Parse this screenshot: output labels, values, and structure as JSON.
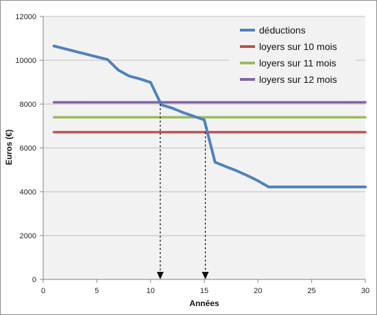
{
  "colors": {
    "background": "#ffffff",
    "plot_area": "#f2f2f2",
    "grid": "#bfbfbf",
    "frame": "#8a8a8a"
  },
  "chart_data": {
    "type": "line",
    "title": "",
    "xlabel": "Années",
    "ylabel": "Euros (€)",
    "xlim": [
      0,
      30
    ],
    "ylim": [
      0,
      12000
    ],
    "x_ticks": [
      0,
      5,
      10,
      15,
      20,
      25,
      30
    ],
    "y_ticks": [
      0,
      2000,
      4000,
      6000,
      8000,
      10000,
      12000
    ],
    "grid": "horizontal",
    "legend_position": "top-right",
    "series": [
      {
        "name": "déductions",
        "color": "#4f81bd",
        "points": [
          [
            1,
            10650
          ],
          [
            6,
            10030
          ],
          [
            7,
            9550
          ],
          [
            8,
            9280
          ],
          [
            9,
            9150
          ],
          [
            10,
            8990
          ],
          [
            11,
            7970
          ],
          [
            12,
            7820
          ],
          [
            13,
            7620
          ],
          [
            14,
            7450
          ],
          [
            15,
            7280
          ],
          [
            16,
            5350
          ],
          [
            17,
            5150
          ],
          [
            18,
            4960
          ],
          [
            19,
            4740
          ],
          [
            20,
            4500
          ],
          [
            21,
            4220
          ],
          [
            30,
            4220
          ]
        ]
      },
      {
        "name": "loyers sur 10 mois",
        "color": "#c0504d",
        "points": [
          [
            1,
            6720
          ],
          [
            30,
            6720
          ]
        ]
      },
      {
        "name": "loyers sur 11 mois",
        "color": "#9bbb59",
        "points": [
          [
            1,
            7400
          ],
          [
            30,
            7400
          ]
        ]
      },
      {
        "name": "loyers sur 12 mois",
        "color": "#8064a2",
        "points": [
          [
            1,
            8080
          ],
          [
            30,
            8080
          ]
        ]
      }
    ],
    "annotations": [
      {
        "type": "dashed-arrow-down",
        "x": 10.9,
        "from_y": 8000,
        "to_y": 0
      },
      {
        "type": "dashed-arrow-down",
        "x": 15.1,
        "from_y": 6720,
        "to_y": 0
      }
    ]
  }
}
